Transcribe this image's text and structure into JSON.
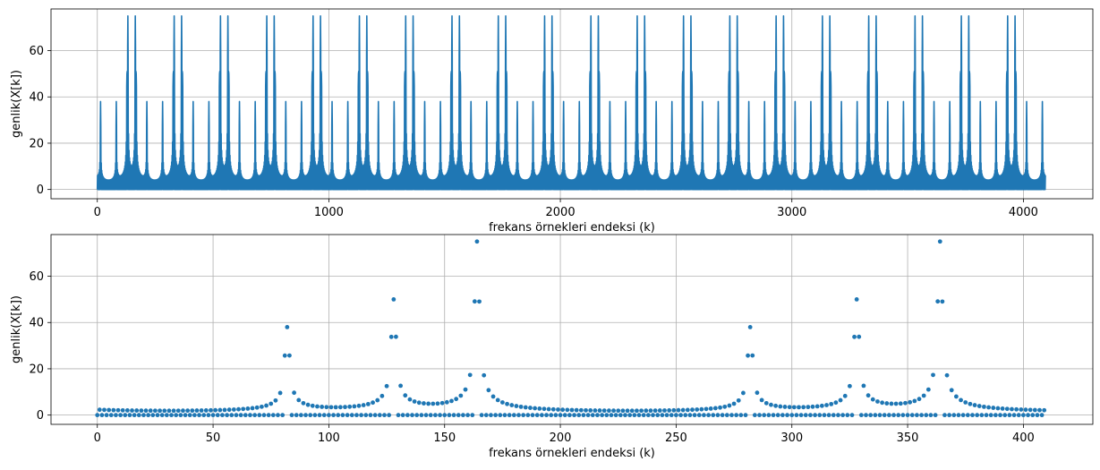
{
  "chart_data": [
    {
      "type": "line",
      "xlabel": "frekans örnekleri endeksi (k)",
      "ylabel": "genlik(X[k])",
      "xlim": [
        -200,
        4300
      ],
      "ylim": [
        -4,
        78
      ],
      "xticks": [
        0,
        1000,
        2000,
        3000,
        4000
      ],
      "yticks": [
        0,
        20,
        40,
        60
      ],
      "grid": true,
      "color": "#1f77b4",
      "N": 4096,
      "peaks": [
        {
          "k": 82,
          "amplitude": 38
        },
        {
          "k": 164,
          "amplitude": 75
        },
        {
          "k": 328,
          "amplitude": 50
        },
        {
          "k": 3768,
          "amplitude": 50
        },
        {
          "k": 3932,
          "amplitude": 75
        },
        {
          "k": 4014,
          "amplitude": 38
        }
      ]
    },
    {
      "type": "scatter",
      "xlabel": "frekans örnekleri endeksi (k)",
      "ylabel": "genlik(X[k])",
      "xlim": [
        -20,
        430
      ],
      "ylim": [
        -4,
        78
      ],
      "xticks": [
        0,
        50,
        100,
        150,
        200,
        250,
        300,
        350,
        400
      ],
      "yticks": [
        0,
        20,
        40,
        60
      ],
      "grid": true,
      "color": "#1f77b4",
      "k_range": [
        0,
        409
      ],
      "peaks": [
        {
          "k": 82,
          "amplitude": 38
        },
        {
          "k": 164,
          "amplitude": 75
        },
        {
          "k": 328,
          "amplitude": 50
        }
      ]
    }
  ]
}
